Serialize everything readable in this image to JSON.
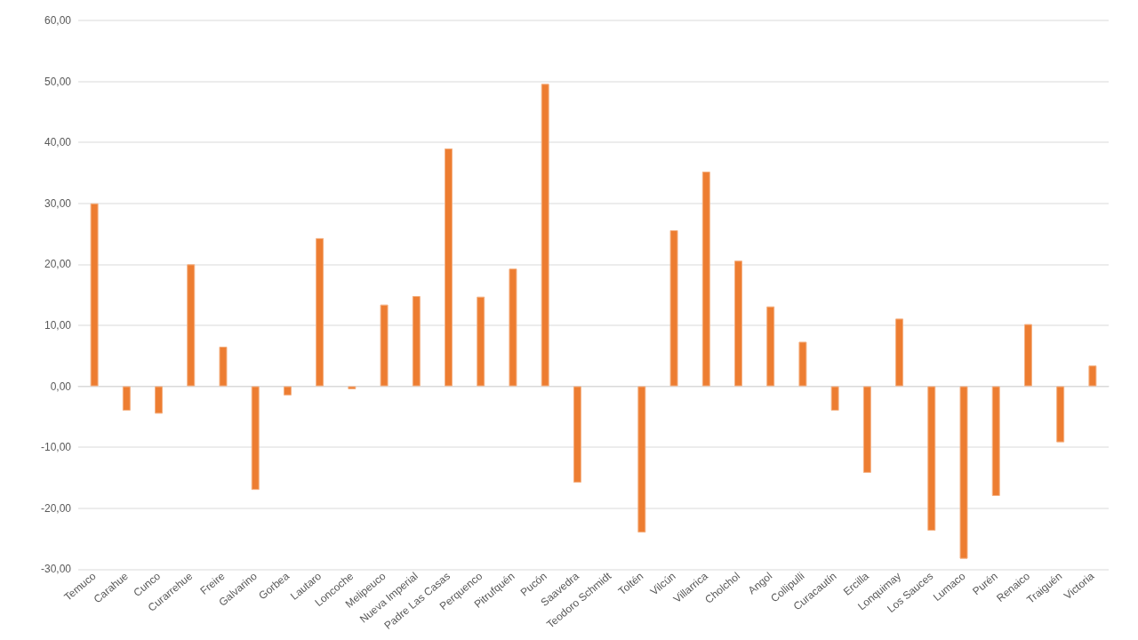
{
  "chart_data": {
    "type": "bar",
    "categories": [
      "Temuco",
      "Carahue",
      "Cunco",
      "Curarrehue",
      "Freire",
      "Galvarino",
      "Gorbea",
      "Lautaro",
      "Loncoche",
      "Melipeuco",
      "Nueva Imperial",
      "Padre Las Casas",
      "Perquenco",
      "Pitrufquén",
      "Pucón",
      "Saavedra",
      "Teodoro Schmidt",
      "Toltén",
      "Vilcún",
      "Villarrica",
      "Cholchol",
      "Angol",
      "Collipulli",
      "Curacautín",
      "Ercilla",
      "Lonquimay",
      "Los Sauces",
      "Lumaco",
      "Purén",
      "Renaico",
      "Traiguén",
      "Victoria"
    ],
    "values": [
      30,
      -4,
      -4.5,
      20,
      6.5,
      -17,
      -1.5,
      24.3,
      -0.5,
      13.4,
      14.8,
      39,
      14.7,
      19.3,
      49.6,
      -15.8,
      null,
      -24,
      25.6,
      35.2,
      20.6,
      13.1,
      7.3,
      -4,
      -14.2,
      11.1,
      -23.7,
      -28.3,
      -18,
      10.2,
      -9.2,
      3.4
    ],
    "color": "#ed7d31",
    "ylim": [
      -30,
      60
    ],
    "yticks": [
      {
        "value": -30,
        "label": "-30,00"
      },
      {
        "value": -20,
        "label": "-20,00"
      },
      {
        "value": -10,
        "label": "-10,00"
      },
      {
        "value": 0,
        "label": "0,00"
      },
      {
        "value": 10,
        "label": "10,00"
      },
      {
        "value": 20,
        "label": "20,00"
      },
      {
        "value": 30,
        "label": "30,00"
      },
      {
        "value": 40,
        "label": "40,00"
      },
      {
        "value": 50,
        "label": "50,00"
      },
      {
        "value": 60,
        "label": "60,00"
      }
    ],
    "grid": true
  }
}
